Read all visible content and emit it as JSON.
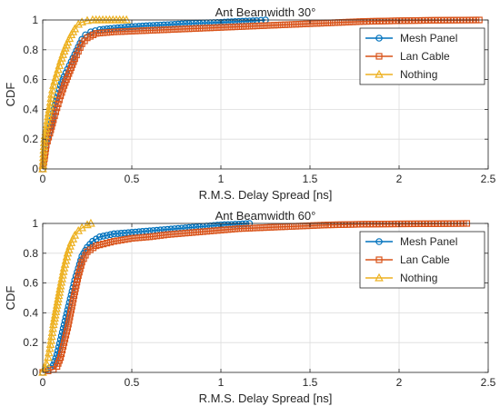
{
  "chart_data": [
    {
      "type": "line",
      "title": "Ant Beamwidth 30°",
      "xlabel": "R.M.S. Delay Spread [ns]",
      "ylabel": "CDF",
      "xlim": [
        0,
        2.5
      ],
      "ylim": [
        0,
        1
      ],
      "xticks": [
        "0",
        "0.5",
        "1",
        "1.5",
        "2",
        "2.5"
      ],
      "yticks": [
        "0",
        "0.2",
        "0.4",
        "0.6",
        "0.8",
        "1"
      ],
      "grid": true,
      "legend_position": "top-right",
      "series": [
        {
          "name": "Mesh Panel",
          "color": "#0072BD",
          "marker": "circle",
          "points": [
            [
              0.0,
              0.0
            ],
            [
              0.01,
              0.08
            ],
            [
              0.02,
              0.18
            ],
            [
              0.04,
              0.26
            ],
            [
              0.06,
              0.38
            ],
            [
              0.08,
              0.48
            ],
            [
              0.1,
              0.56
            ],
            [
              0.12,
              0.62
            ],
            [
              0.14,
              0.67
            ],
            [
              0.16,
              0.72
            ],
            [
              0.18,
              0.77
            ],
            [
              0.2,
              0.82
            ],
            [
              0.22,
              0.87
            ],
            [
              0.24,
              0.9
            ],
            [
              0.27,
              0.92
            ],
            [
              0.32,
              0.935
            ],
            [
              0.4,
              0.945
            ],
            [
              0.5,
              0.955
            ],
            [
              0.6,
              0.962
            ],
            [
              0.7,
              0.968
            ],
            [
              0.8,
              0.975
            ],
            [
              0.9,
              0.98
            ],
            [
              1.0,
              0.984
            ],
            [
              1.1,
              0.99
            ],
            [
              1.2,
              0.995
            ],
            [
              1.25,
              1.0
            ]
          ]
        },
        {
          "name": "Lan Cable",
          "color": "#D95319",
          "marker": "square",
          "points": [
            [
              0.0,
              0.0
            ],
            [
              0.01,
              0.07
            ],
            [
              0.02,
              0.16
            ],
            [
              0.04,
              0.24
            ],
            [
              0.06,
              0.33
            ],
            [
              0.08,
              0.41
            ],
            [
              0.1,
              0.49
            ],
            [
              0.12,
              0.56
            ],
            [
              0.14,
              0.62
            ],
            [
              0.16,
              0.68
            ],
            [
              0.18,
              0.74
            ],
            [
              0.2,
              0.79
            ],
            [
              0.22,
              0.84
            ],
            [
              0.25,
              0.88
            ],
            [
              0.3,
              0.91
            ],
            [
              0.4,
              0.92
            ],
            [
              0.5,
              0.925
            ],
            [
              0.6,
              0.93
            ],
            [
              0.7,
              0.935
            ],
            [
              0.8,
              0.94
            ],
            [
              0.9,
              0.945
            ],
            [
              1.0,
              0.95
            ],
            [
              1.1,
              0.955
            ],
            [
              1.2,
              0.96
            ],
            [
              1.3,
              0.965
            ],
            [
              1.4,
              0.97
            ],
            [
              1.5,
              0.975
            ],
            [
              1.6,
              0.98
            ],
            [
              1.7,
              0.985
            ],
            [
              1.8,
              0.99
            ],
            [
              2.0,
              0.995
            ],
            [
              2.2,
              0.998
            ],
            [
              2.45,
              1.0
            ]
          ]
        },
        {
          "name": "Nothing",
          "color": "#EDB120",
          "marker": "triangle",
          "points": [
            [
              0.0,
              0.0
            ],
            [
              0.005,
              0.1
            ],
            [
              0.01,
              0.2
            ],
            [
              0.02,
              0.27
            ],
            [
              0.03,
              0.35
            ],
            [
              0.04,
              0.42
            ],
            [
              0.05,
              0.5
            ],
            [
              0.06,
              0.56
            ],
            [
              0.08,
              0.64
            ],
            [
              0.1,
              0.72
            ],
            [
              0.12,
              0.79
            ],
            [
              0.14,
              0.85
            ],
            [
              0.16,
              0.9
            ],
            [
              0.18,
              0.94
            ],
            [
              0.2,
              0.97
            ],
            [
              0.22,
              0.985
            ],
            [
              0.25,
              0.995
            ],
            [
              0.28,
              1.0
            ],
            [
              0.47,
              1.0
            ]
          ]
        }
      ]
    },
    {
      "type": "line",
      "title": "Ant Beamwidth 60°",
      "xlabel": "R.M.S. Delay Spread [ns]",
      "ylabel": "CDF",
      "xlim": [
        0,
        2.5
      ],
      "ylim": [
        0,
        1
      ],
      "xticks": [
        "0",
        "0.5",
        "1",
        "1.5",
        "2",
        "2.5"
      ],
      "yticks": [
        "0",
        "0.2",
        "0.4",
        "0.6",
        "0.8",
        "1"
      ],
      "grid": true,
      "legend_position": "top-right",
      "series": [
        {
          "name": "Mesh Panel",
          "color": "#0072BD",
          "marker": "circle",
          "points": [
            [
              0.0,
              0.0
            ],
            [
              0.02,
              0.02
            ],
            [
              0.04,
              0.03
            ],
            [
              0.06,
              0.05
            ],
            [
              0.08,
              0.12
            ],
            [
              0.1,
              0.22
            ],
            [
              0.12,
              0.32
            ],
            [
              0.14,
              0.42
            ],
            [
              0.16,
              0.52
            ],
            [
              0.18,
              0.62
            ],
            [
              0.2,
              0.7
            ],
            [
              0.22,
              0.78
            ],
            [
              0.25,
              0.84
            ],
            [
              0.28,
              0.88
            ],
            [
              0.32,
              0.91
            ],
            [
              0.4,
              0.93
            ],
            [
              0.5,
              0.94
            ],
            [
              0.6,
              0.95
            ],
            [
              0.7,
              0.96
            ],
            [
              0.8,
              0.97
            ],
            [
              0.9,
              0.98
            ],
            [
              1.0,
              0.99
            ],
            [
              1.1,
              0.995
            ],
            [
              1.16,
              1.0
            ]
          ]
        },
        {
          "name": "Lan Cable",
          "color": "#D95319",
          "marker": "square",
          "points": [
            [
              0.0,
              0.0
            ],
            [
              0.03,
              0.01
            ],
            [
              0.06,
              0.02
            ],
            [
              0.08,
              0.04
            ],
            [
              0.1,
              0.1
            ],
            [
              0.12,
              0.2
            ],
            [
              0.14,
              0.3
            ],
            [
              0.16,
              0.42
            ],
            [
              0.18,
              0.54
            ],
            [
              0.2,
              0.65
            ],
            [
              0.22,
              0.74
            ],
            [
              0.25,
              0.81
            ],
            [
              0.3,
              0.85
            ],
            [
              0.4,
              0.88
            ],
            [
              0.5,
              0.9
            ],
            [
              0.6,
              0.91
            ],
            [
              0.7,
              0.925
            ],
            [
              0.8,
              0.935
            ],
            [
              0.9,
              0.945
            ],
            [
              1.0,
              0.955
            ],
            [
              1.1,
              0.965
            ],
            [
              1.2,
              0.97
            ],
            [
              1.3,
              0.975
            ],
            [
              1.4,
              0.98
            ],
            [
              1.5,
              0.985
            ],
            [
              1.6,
              0.99
            ],
            [
              1.8,
              0.995
            ],
            [
              2.0,
              0.997
            ],
            [
              2.2,
              0.998
            ],
            [
              2.38,
              1.0
            ]
          ]
        },
        {
          "name": "Nothing",
          "color": "#EDB120",
          "marker": "triangle",
          "points": [
            [
              0.0,
              0.0
            ],
            [
              0.01,
              0.03
            ],
            [
              0.02,
              0.06
            ],
            [
              0.03,
              0.1
            ],
            [
              0.04,
              0.16
            ],
            [
              0.05,
              0.24
            ],
            [
              0.06,
              0.32
            ],
            [
              0.08,
              0.45
            ],
            [
              0.1,
              0.58
            ],
            [
              0.12,
              0.7
            ],
            [
              0.14,
              0.8
            ],
            [
              0.16,
              0.87
            ],
            [
              0.18,
              0.92
            ],
            [
              0.2,
              0.95
            ],
            [
              0.22,
              0.97
            ],
            [
              0.25,
              0.99
            ],
            [
              0.27,
              1.0
            ]
          ]
        }
      ]
    }
  ]
}
